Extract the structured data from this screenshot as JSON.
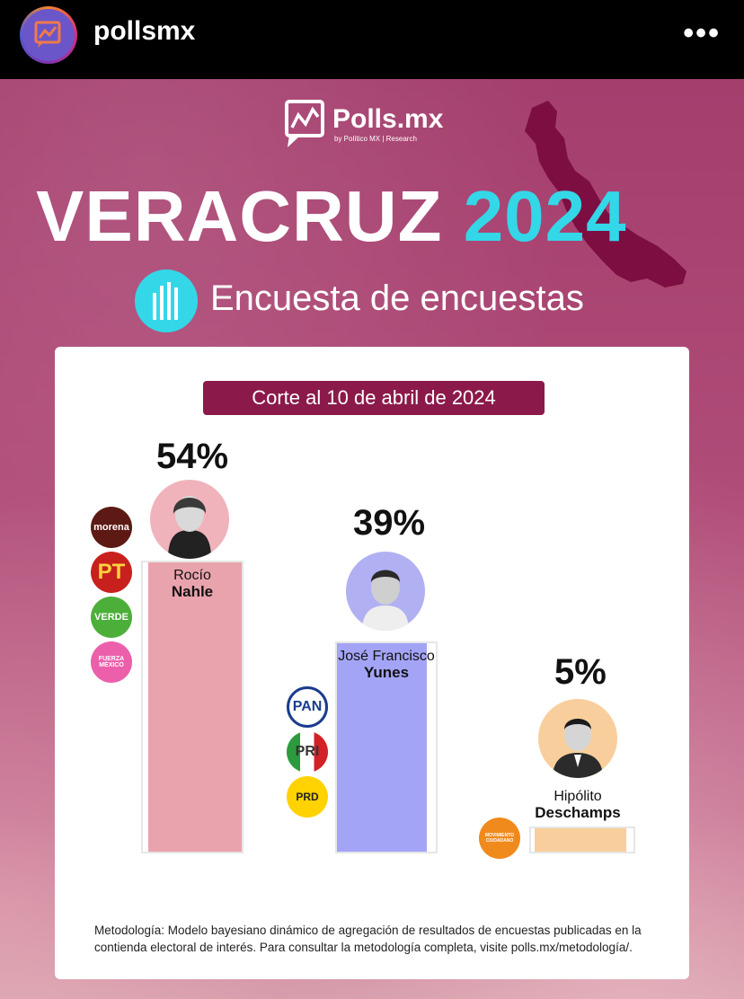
{
  "header": {
    "username": "pollsmx",
    "more_icon": "more-horizontal-icon"
  },
  "post": {
    "brand": {
      "name": "Polls.mx",
      "sub": "by Político MX | Research"
    },
    "title_word": "VERACRUZ",
    "title_year": "2024",
    "subtitle": "Encuesta de encuestas",
    "date_label": "Corte al 10 de abril de 2024",
    "colors": {
      "accent": "#34d7e8",
      "background": "#a43e6d",
      "pill": "#8b1a4a"
    },
    "candidates": [
      {
        "pct_label": "54%",
        "value": 54,
        "first": "Rocío",
        "last": "Nahle",
        "color": "#e9a3ac",
        "parties": [
          "morena",
          "PT",
          "VERDE",
          "FUERZA MÉXICO"
        ]
      },
      {
        "pct_label": "39%",
        "value": 39,
        "first": "José Francisco",
        "last": "Yunes",
        "color": "#a4a4f6",
        "parties": [
          "PAN",
          "PRI",
          "PRD"
        ]
      },
      {
        "pct_label": "5%",
        "value": 5,
        "first": "Hipólito",
        "last": "Deschamps",
        "color": "#f8cf9c",
        "parties": [
          "MOVIMIENTO CIUDADANO"
        ]
      }
    ],
    "methodology": "Metodología: Modelo bayesiano dinámico de agregación de resultados de encuestas publicadas en la contienda electoral de interés. Para consultar la metodología completa, visite polls.mx/metodología/."
  }
}
